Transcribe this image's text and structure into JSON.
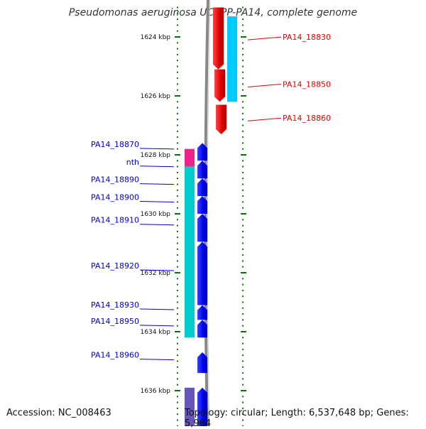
{
  "title": "Pseudomonas aeruginosa UCBPP-PA14, complete genome",
  "footer": {
    "accession": "Accession: NC_008463",
    "summary": "Topology: circular; Length: 6,537,648 bp; Genes: 5,964"
  },
  "colors": {
    "plus_strand_label": "#dd0000",
    "minus_strand_label": "#0000cc",
    "backbone": "#888888",
    "ticks": "#007700"
  },
  "scale_labels": [
    {
      "kbp": 1624,
      "text": "1624 kbp"
    },
    {
      "kbp": 1626,
      "text": "1626 kbp"
    },
    {
      "kbp": 1628,
      "text": "1628 kbp"
    },
    {
      "kbp": 1630,
      "text": "1630 kbp"
    },
    {
      "kbp": 1632,
      "text": "1632 kbp"
    },
    {
      "kbp": 1634,
      "text": "1634 kbp"
    },
    {
      "kbp": 1636,
      "text": "1636 kbp"
    }
  ],
  "genes_plus": [
    {
      "name": "PA14_18830",
      "start": 1623.0,
      "end": 1625.1,
      "cog_color": "#ee0000"
    },
    {
      "name": "PA14_18850",
      "start": 1625.1,
      "end": 1626.2,
      "cog_color": "#ee0000"
    },
    {
      "name": "PA14_18860",
      "start": 1626.3,
      "end": 1627.3,
      "cog_color": "#ee0000"
    }
  ],
  "cog_plus": [
    {
      "start": 1623.3,
      "end": 1626.2,
      "color": "#00ccff"
    }
  ],
  "genes_minus": [
    {
      "name": "PA14_18870",
      "start": 1627.6,
      "end": 1628.2
    },
    {
      "name": "nth",
      "start": 1628.2,
      "end": 1628.8
    },
    {
      "name": "PA14_18890",
      "start": 1628.8,
      "end": 1629.4
    },
    {
      "name": "PA14_18900",
      "start": 1629.4,
      "end": 1630.0
    },
    {
      "name": "PA14_18910",
      "start": 1630.0,
      "end": 1630.95
    },
    {
      "name": "PA14_18920",
      "start": 1630.95,
      "end": 1633.1
    },
    {
      "name": "PA14_18930",
      "start": 1633.1,
      "end": 1633.6
    },
    {
      "name": "PA14_18950",
      "start": 1633.6,
      "end": 1634.2
    },
    {
      "name": "PA14_18960",
      "start": 1634.7,
      "end": 1635.4
    },
    {
      "name": "",
      "start": 1635.9,
      "end": 1637.5
    }
  ],
  "cog_minus": [
    {
      "start": 1627.8,
      "end": 1628.4,
      "color": "#ee2288"
    },
    {
      "start": 1628.4,
      "end": 1634.2,
      "color": "#00cccc"
    },
    {
      "start": 1635.9,
      "end": 1637.5,
      "color": "#6655bb"
    }
  ]
}
